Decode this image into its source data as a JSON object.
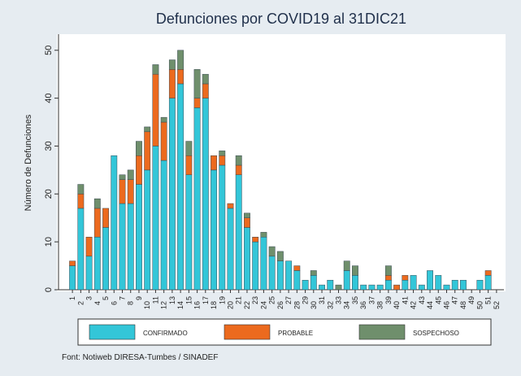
{
  "chart_data": {
    "type": "stacked_bar",
    "title": "Defunciones por COVID19 al 31DIC21",
    "y_label": "Número de Defunciones",
    "source": "Font: Notiweb DIRESA-Tumbes / SINADEF",
    "categories": [
      "1",
      "2",
      "3",
      "4",
      "5",
      "6",
      "7",
      "8",
      "9",
      "10",
      "11",
      "12",
      "13",
      "14",
      "15",
      "16",
      "17",
      "18",
      "19",
      "20",
      "21",
      "22",
      "23",
      "24",
      "25",
      "26",
      "27",
      "28",
      "29",
      "30",
      "31",
      "32",
      "33",
      "34",
      "35",
      "36",
      "37",
      "38",
      "39",
      "40",
      "41",
      "42",
      "43",
      "44",
      "45",
      "46",
      "47",
      "48",
      "49",
      "50",
      "51",
      "52"
    ],
    "series": [
      {
        "name": "CONFIRMADO",
        "color": "#33c6d8",
        "values": [
          5,
          17,
          7,
          11,
          13,
          28,
          18,
          18,
          22,
          25,
          30,
          27,
          40,
          43,
          24,
          38,
          40,
          25,
          26,
          17,
          24,
          13,
          10,
          11,
          7,
          6,
          6,
          4,
          2,
          3,
          1,
          2,
          0,
          4,
          3,
          1,
          1,
          1,
          2,
          0,
          2,
          3,
          1,
          4,
          3,
          1,
          2,
          2,
          0,
          2,
          3,
          0
        ]
      },
      {
        "name": "PROBABLE",
        "color": "#ec6a1e",
        "values": [
          1,
          3,
          4,
          6,
          4,
          0,
          5,
          5,
          6,
          8,
          15,
          8,
          6,
          3,
          4,
          2,
          3,
          3,
          2,
          1,
          2,
          2,
          1,
          0,
          0,
          0,
          0,
          1,
          0,
          0,
          0,
          0,
          0,
          0,
          0,
          0,
          0,
          0,
          1,
          1,
          1,
          0,
          0,
          0,
          0,
          0,
          0,
          0,
          0,
          0,
          1,
          0
        ]
      },
      {
        "name": "SOSPECHOSO",
        "color": "#6f8f6c",
        "values": [
          0,
          2,
          0,
          2,
          0,
          0,
          1,
          2,
          3,
          1,
          2,
          1,
          2,
          4,
          3,
          6,
          2,
          0,
          1,
          0,
          2,
          1,
          0,
          1,
          2,
          2,
          0,
          0,
          0,
          1,
          0,
          0,
          1,
          2,
          2,
          0,
          0,
          0,
          2,
          0,
          0,
          0,
          0,
          0,
          0,
          0,
          0,
          0,
          0,
          0,
          0,
          0
        ]
      }
    ],
    "ylim": [
      0,
      52
    ],
    "yticks": [
      0,
      10,
      20,
      30,
      40,
      50
    ]
  }
}
